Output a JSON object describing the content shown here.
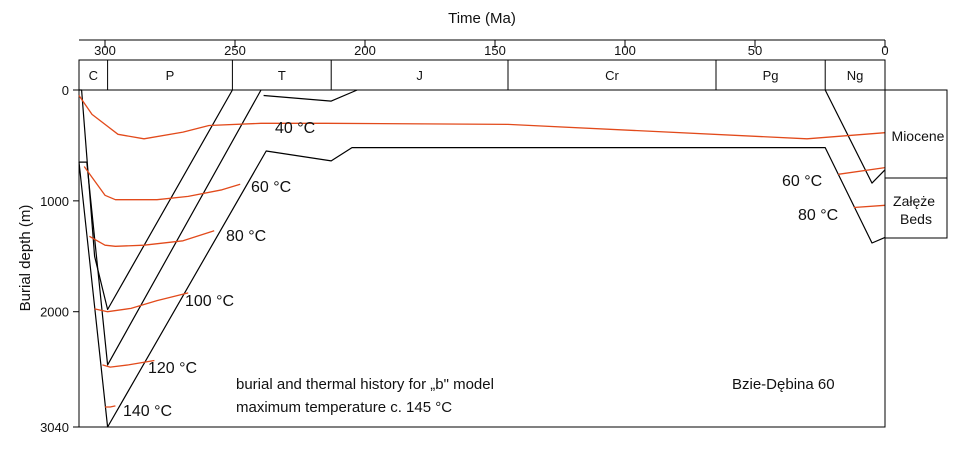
{
  "chart_data": {
    "type": "line",
    "title": "",
    "xlabel": "Time (Ma)",
    "ylabel": "Burial depth (m)",
    "xlim": [
      310,
      0
    ],
    "ylim": [
      0,
      3040
    ],
    "x_ticks": [
      300,
      250,
      200,
      150,
      100,
      50,
      0
    ],
    "y_ticks": [
      0,
      1000,
      2000,
      3040
    ],
    "periods": [
      {
        "name": "C",
        "start": 310,
        "end": 299
      },
      {
        "name": "P",
        "start": 299,
        "end": 251
      },
      {
        "name": "T",
        "start": 251,
        "end": 213
      },
      {
        "name": "J",
        "start": 213,
        "end": 145
      },
      {
        "name": "Cr",
        "start": 145,
        "end": 65
      },
      {
        "name": "Pg",
        "start": 65,
        "end": 23
      },
      {
        "name": "Ng",
        "start": 23,
        "end": 0
      }
    ],
    "burial_curves": [
      {
        "x": [
          310,
          309,
          304,
          299,
          251
        ],
        "y": [
          0,
          0,
          1500,
          1980,
          0
        ]
      },
      {
        "x": [
          310,
          307,
          299,
          240
        ],
        "y": [
          650,
          650,
          2480,
          0
        ]
      },
      {
        "x": [
          310,
          299,
          238,
          213,
          205,
          145,
          65,
          23,
          5,
          0
        ],
        "y": [
          650,
          3040,
          550,
          640,
          520,
          520,
          520,
          520,
          1380,
          1330
        ]
      },
      {
        "x": [
          239,
          213,
          203
        ],
        "y": [
          50,
          100,
          0
        ]
      },
      {
        "x": [
          23,
          5,
          0
        ],
        "y": [
          0,
          840,
          720
        ]
      }
    ],
    "isotherms": [
      {
        "label": "40 °C",
        "x": [
          310,
          305,
          295,
          285,
          270,
          260,
          240,
          215,
          145,
          30,
          0
        ],
        "y": [
          50,
          220,
          400,
          440,
          380,
          320,
          300,
          300,
          310,
          440,
          385
        ]
      },
      {
        "label": "60 °C",
        "x": [
          308,
          300,
          296,
          280,
          268,
          255,
          248
        ],
        "y": [
          690,
          950,
          990,
          990,
          960,
          900,
          850
        ]
      },
      {
        "label": "80 °C",
        "x": [
          306,
          300,
          296,
          285,
          270,
          258
        ],
        "y": [
          1320,
          1400,
          1410,
          1400,
          1360,
          1270
        ]
      },
      {
        "label": "100 °C",
        "x": [
          304,
          299,
          290,
          280,
          268
        ],
        "y": [
          1975,
          2000,
          1970,
          1900,
          1830
        ]
      },
      {
        "label": "120 °C",
        "x": [
          301,
          298,
          291,
          281
        ],
        "y": [
          2480,
          2500,
          2480,
          2440
        ]
      },
      {
        "label": "140 °C",
        "x": [
          300,
          298,
          296
        ],
        "y": [
          2860,
          2860,
          2850
        ]
      },
      {
        "label": "60 °C",
        "x": [
          18,
          0
        ],
        "y": [
          760,
          700
        ]
      },
      {
        "label": "80 °C",
        "x": [
          12,
          0
        ],
        "y": [
          1060,
          1040
        ]
      }
    ],
    "isotherm_color": "#e24a1b",
    "burial_color": "#000000",
    "formations": [
      "Miocene",
      "Załęże Beds"
    ],
    "annotations": [
      "burial and thermal history for „b\" model",
      "maximum temperature c. 145 °C",
      "Bzie-Dębina 60"
    ]
  }
}
